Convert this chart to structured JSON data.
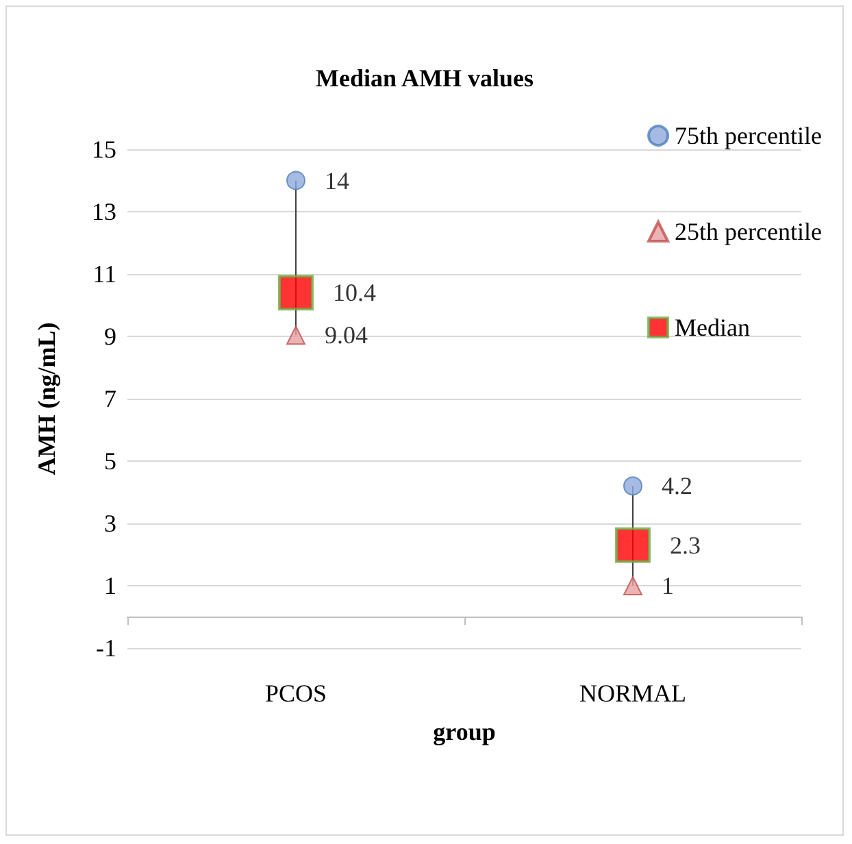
{
  "chart_data": {
    "type": "scatter",
    "title": "Median AMH values",
    "xlabel": "group",
    "ylabel": "AMH (ng/mL)",
    "categories": [
      "PCOS",
      "NORMAL"
    ],
    "series": [
      {
        "name": "75th percentile",
        "color": "#8faadc",
        "marker": "circle",
        "values": [
          14,
          4.2
        ]
      },
      {
        "name": "25th percentile",
        "color": "#e6a0a0",
        "marker": "triangle",
        "values": [
          9.04,
          1
        ]
      },
      {
        "name": "Median",
        "color": "#ff0000",
        "marker": "square",
        "values": [
          10.4,
          2.3
        ]
      }
    ],
    "ylim": [
      -1,
      15
    ],
    "yticks": [
      -1,
      1,
      3,
      5,
      7,
      9,
      11,
      13,
      15
    ],
    "grid": "y",
    "legend": "top right",
    "data_labels": true
  }
}
